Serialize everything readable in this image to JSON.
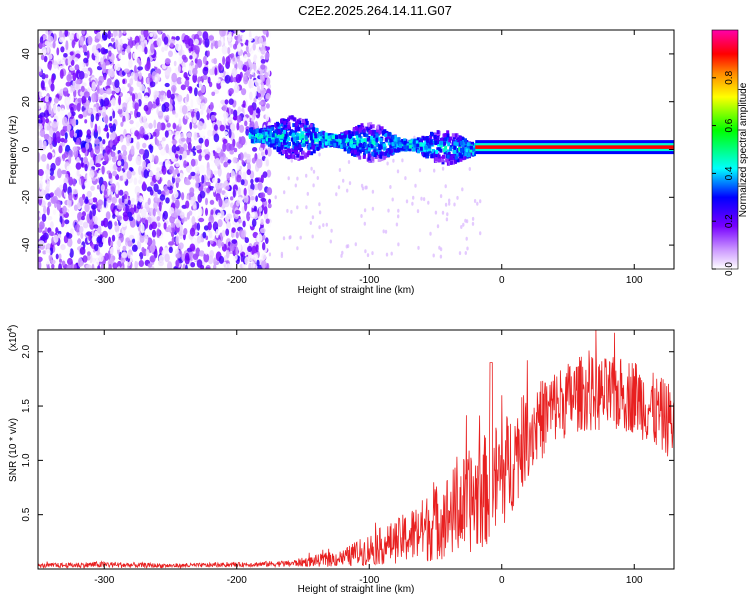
{
  "title": "C2E2.2025.264.14.11.G07",
  "chart_data": [
    {
      "type": "heatmap",
      "name": "spectrogram",
      "xlabel": "Height of straight line (km)",
      "ylabel": "Frequency (Hz)",
      "xlim": [
        -350,
        130
      ],
      "ylim": [
        -50,
        50
      ],
      "xticks": [
        -300,
        -200,
        -100,
        0,
        100
      ],
      "yticks": [
        -40,
        -20,
        0,
        20,
        40
      ],
      "colorbar": {
        "label": "Normalized spectral amplitude",
        "range": [
          0,
          1
        ],
        "ticks": [
          "0.0",
          "0.2",
          "0.4",
          "0.6",
          "0.8"
        ],
        "tick_values": [
          0.0,
          0.2,
          0.4,
          0.6,
          0.8
        ],
        "colors": [
          "#ffffff",
          "#cc99ff",
          "#7700ff",
          "#0000ff",
          "#00ffff",
          "#00ff00",
          "#ffff00",
          "#ff8800",
          "#ff0000",
          "#ff00aa"
        ]
      },
      "regions": [
        {
          "name": "noise",
          "x": [
            -350,
            -175
          ],
          "y_spread": [
            -50,
            50
          ],
          "amplitude": [
            0.0,
            0.25
          ]
        },
        {
          "name": "rising-signal",
          "x": [
            -190,
            -20
          ],
          "y_center": [
            6,
            0
          ],
          "y_halfwidth": [
            6,
            4
          ],
          "amplitude": [
            0.3,
            0.5
          ]
        },
        {
          "name": "stable-tone",
          "x": [
            -20,
            130
          ],
          "y_center": 1,
          "amplitude": [
            0.85,
            1.0
          ]
        }
      ]
    },
    {
      "type": "line",
      "name": "snr",
      "xlabel": "Height of straight line (km)",
      "ylabel": "SNR (10 * v/v)",
      "ylabel_unit": "(x10",
      "ylabel_exponent": "4",
      "ylabel_unit_close": ")",
      "xlim": [
        -350,
        130
      ],
      "ylim": [
        0,
        2.2
      ],
      "xticks": [
        -300,
        -200,
        -100,
        0,
        100
      ],
      "yticks": [
        "0.5",
        "1.0",
        "1.5",
        "2.0"
      ],
      "ytick_values": [
        0.5,
        1.0,
        1.5,
        2.0
      ],
      "color": "#e82020",
      "series_envelope": [
        {
          "x": -350,
          "mean": 0.03,
          "spread": 0.02
        },
        {
          "x": -300,
          "mean": 0.04,
          "spread": 0.03
        },
        {
          "x": -250,
          "mean": 0.03,
          "spread": 0.02
        },
        {
          "x": -200,
          "mean": 0.04,
          "spread": 0.02
        },
        {
          "x": -160,
          "mean": 0.05,
          "spread": 0.03
        },
        {
          "x": -120,
          "mean": 0.1,
          "spread": 0.08
        },
        {
          "x": -100,
          "mean": 0.18,
          "spread": 0.15
        },
        {
          "x": -80,
          "mean": 0.25,
          "spread": 0.2
        },
        {
          "x": -60,
          "mean": 0.35,
          "spread": 0.3
        },
        {
          "x": -40,
          "mean": 0.5,
          "spread": 0.4
        },
        {
          "x": -20,
          "mean": 0.65,
          "spread": 0.5
        },
        {
          "x": -5,
          "mean": 0.8,
          "spread": 0.55
        },
        {
          "x": 5,
          "mean": 0.95,
          "spread": 0.5
        },
        {
          "x": 20,
          "mean": 1.25,
          "spread": 0.4
        },
        {
          "x": 40,
          "mean": 1.5,
          "spread": 0.35
        },
        {
          "x": 60,
          "mean": 1.62,
          "spread": 0.35
        },
        {
          "x": 80,
          "mean": 1.6,
          "spread": 0.35
        },
        {
          "x": 100,
          "mean": 1.6,
          "spread": 0.35
        },
        {
          "x": 115,
          "mean": 1.45,
          "spread": 0.35
        },
        {
          "x": 130,
          "mean": 1.35,
          "spread": 0.35
        }
      ]
    }
  ]
}
